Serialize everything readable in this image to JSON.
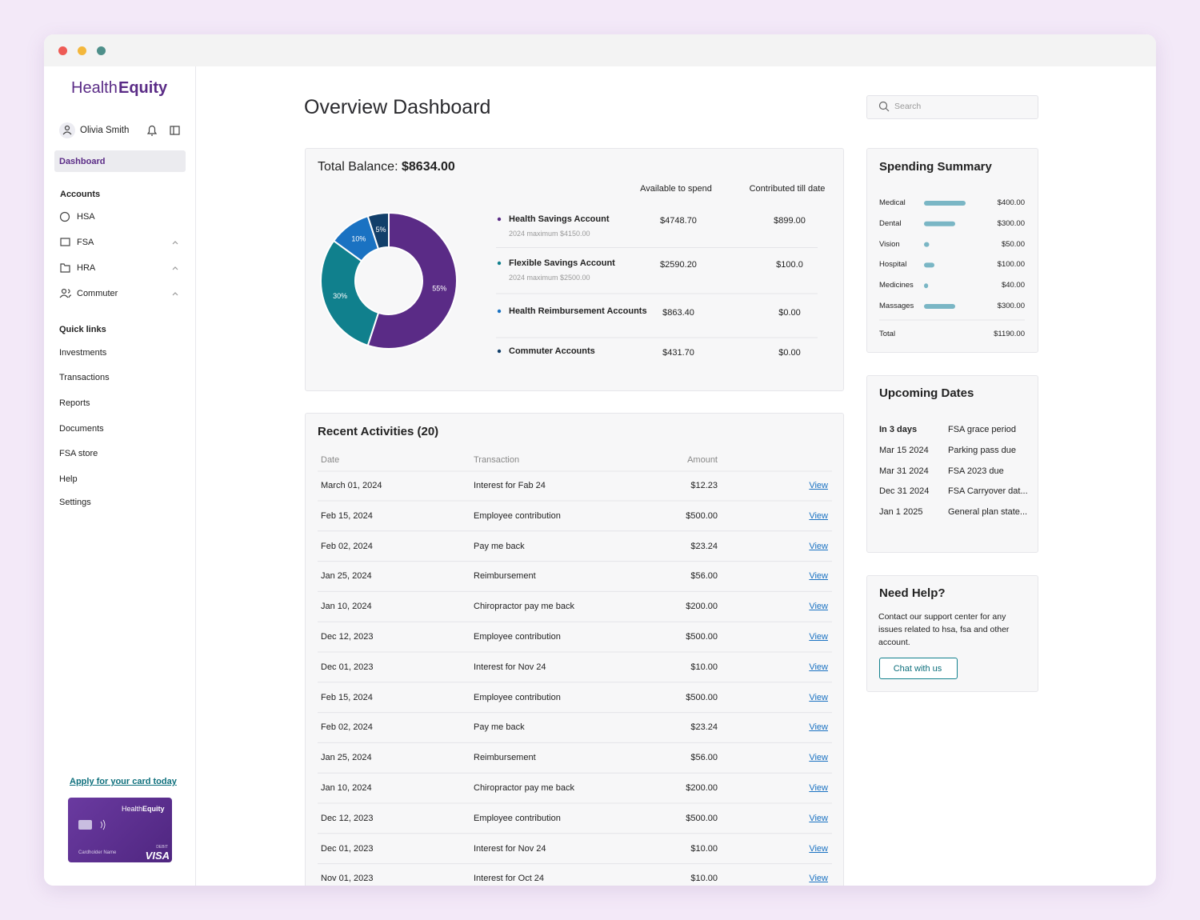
{
  "sidebar": {
    "logo": [
      "Health",
      "Equity"
    ],
    "user": "Olivia Smith",
    "active": "Dashboard",
    "accounts_heading": "Accounts",
    "accounts": [
      "HSA",
      "FSA",
      "HRA",
      "Commuter"
    ],
    "quick_links_heading": "Quick links",
    "quick_links": [
      "Investments",
      "Transactions",
      "Reports",
      "Documents",
      "FSA store",
      "Help",
      "Settings"
    ],
    "card_cta": "Apply for your card today",
    "card": {
      "brand": [
        "Health",
        "Equity"
      ],
      "holder": "Cardholder Name",
      "type": "DEBIT",
      "network": "VISA"
    }
  },
  "header": {
    "title": "Overview Dashboard",
    "search_placeholder": "Search"
  },
  "balance": {
    "label": "Total Balance:",
    "total": "$8634.00",
    "columns": [
      "Available to spend",
      "Contributed till date"
    ],
    "accounts": [
      {
        "name": "Health Savings Account",
        "note": "2024 maximum $4150.00",
        "available": "$4748.70",
        "contributed": "$899.00"
      },
      {
        "name": "Flexible Savings Account",
        "note": "2024 maximum $2500.00",
        "available": "$2590.20",
        "contributed": "$100.0"
      },
      {
        "name": "Health Reimbursement Accounts",
        "available": "$863.40",
        "contributed": "$0.00"
      },
      {
        "name": "Commuter Accounts",
        "available": "$431.70",
        "contributed": "$0.00"
      }
    ]
  },
  "chart_data": [
    {
      "type": "pie",
      "values": [
        55,
        30,
        10,
        5
      ],
      "value_labels": [
        "55%",
        "30%",
        "10%",
        "5%"
      ],
      "colors": [
        "#5a2b86",
        "#10808d",
        "#1a72c2",
        "#123f6a"
      ]
    },
    {
      "type": "bar",
      "orientation": "horizontal",
      "categories": [
        "Medical",
        "Dental",
        "Vision",
        "Hospital",
        "Medicines",
        "Massages"
      ],
      "values": [
        400,
        300,
        50,
        100,
        40,
        300
      ],
      "value_labels": [
        "$400.00",
        "$300.00",
        "$50.00",
        "$100.00",
        "$40.00",
        "$300.00"
      ],
      "color": "#7ab6c5"
    }
  ],
  "spending": {
    "title": "Spending Summary",
    "total_label": "Total",
    "total": "$1190.00"
  },
  "activities": {
    "title": "Recent Activities (20)",
    "columns": [
      "Date",
      "Transaction",
      "Amount"
    ],
    "rows": [
      [
        "March 01, 2024",
        "Interest for Fab 24",
        "$12.23",
        "View"
      ],
      [
        "Feb 15, 2024",
        "Employee contribution",
        "$500.00",
        "View"
      ],
      [
        "Feb 02, 2024",
        "Pay me back",
        "$23.24",
        "View"
      ],
      [
        "Jan 25, 2024",
        "Reimbursement",
        "$56.00",
        "View"
      ],
      [
        "Jan 10, 2024",
        "Chiropractor pay me back",
        "$200.00",
        "View"
      ],
      [
        "Dec 12, 2023",
        "Employee contribution",
        "$500.00",
        "View"
      ],
      [
        "Dec 01, 2023",
        "Interest for Nov 24",
        "$10.00",
        "View"
      ],
      [
        "Feb 15, 2024",
        "Employee contribution",
        "$500.00",
        "View"
      ],
      [
        "Feb 02, 2024",
        "Pay me back",
        "$23.24",
        "View"
      ],
      [
        "Jan 25, 2024",
        "Reimbursement",
        "$56.00",
        "View"
      ],
      [
        "Jan 10, 2024",
        "Chiropractor pay me back",
        "$200.00",
        "View"
      ],
      [
        "Dec 12, 2023",
        "Employee contribution",
        "$500.00",
        "View"
      ],
      [
        "Dec 01, 2023",
        "Interest for Nov 24",
        "$10.00",
        "View"
      ],
      [
        "Nov 01, 2023",
        "Interest for Oct 24",
        "$10.00",
        "View"
      ]
    ]
  },
  "upcoming": {
    "title": "Upcoming Dates",
    "rows": [
      [
        "In 3 days",
        "FSA grace period"
      ],
      [
        "Mar 15 2024",
        "Parking pass due"
      ],
      [
        "Mar 31 2024",
        "FSA 2023 due"
      ],
      [
        "Dec 31 2024",
        "FSA Carryover dat..."
      ],
      [
        "Jan 1 2025",
        "General plan state..."
      ]
    ]
  },
  "help": {
    "title": "Need Help?",
    "text": "Contact our support center for any issues related to hsa, fsa and other account.",
    "button": "Chat with us"
  }
}
